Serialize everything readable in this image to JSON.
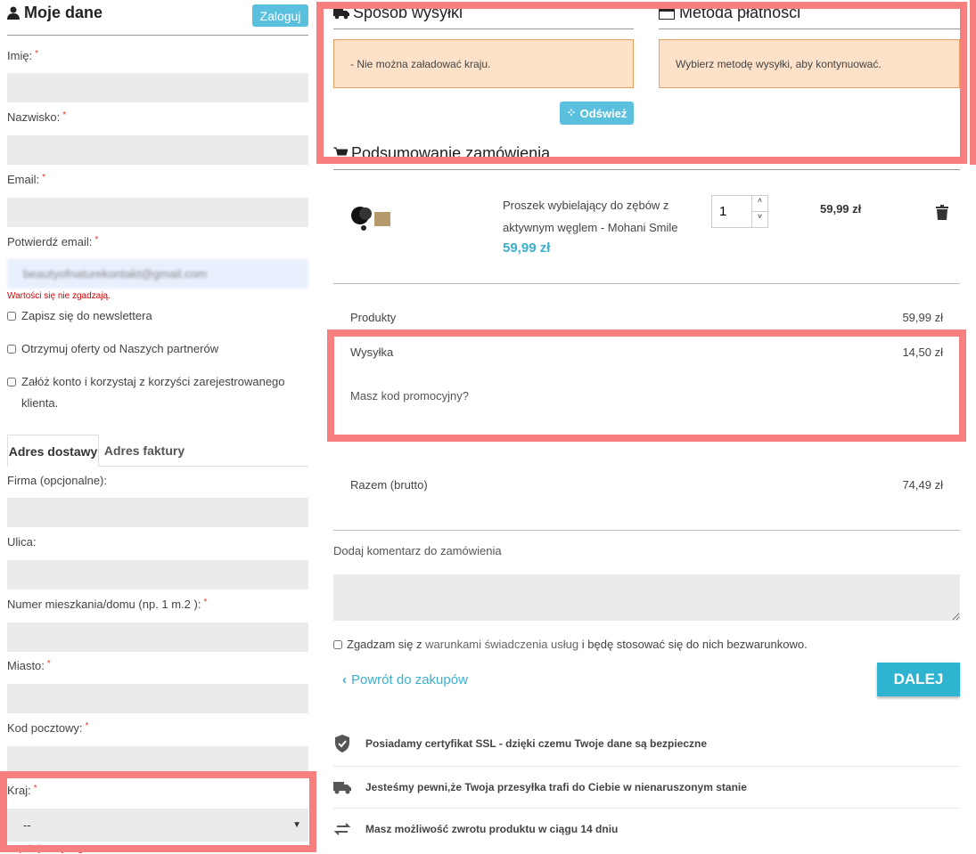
{
  "my_data": {
    "title": "Moje dane",
    "login_button": "Zaloguj",
    "fields": [
      {
        "label": "Imię:",
        "required": "*"
      },
      {
        "label": "Nazwisko:",
        "required": "*"
      },
      {
        "label": "Email:",
        "required": "*"
      },
      {
        "label": "Potwierdź email:",
        "required": "*",
        "value": "beautyofnaturekontakt@gmail.com",
        "error": "Wartości się nie zgadzają."
      }
    ],
    "checkboxes": [
      "Zapisz się do newslettera",
      "Otrzymuj oferty od Naszych partnerów",
      "Załóż konto i korzystaj z korzyści zarejestrowanego klienta."
    ]
  },
  "address": {
    "tabs": [
      "Adres dostawy",
      "Adres faktury"
    ],
    "fields": [
      {
        "label": "Firma (opcjonalne):",
        "required": ""
      },
      {
        "label": "Ulica:",
        "required": ""
      },
      {
        "label": "Numer mieszkania/domu (np. 1 m.2 ):",
        "required": "*"
      },
      {
        "label": "Miasto:",
        "required": "*"
      },
      {
        "label": "Kod pocztowy:",
        "required": "*"
      }
    ],
    "country": {
      "label": "Kraj:",
      "required": "*",
      "value": "--",
      "error": "To pole jest wymagane."
    }
  },
  "shipping": {
    "title": "Sposób wysyłki",
    "alert": "- Nie można załadować kraju.",
    "refresh": "Odśwież"
  },
  "payment": {
    "title": "Metoda płatności",
    "alert": "Wybierz metodę wysyłki, aby kontynuować."
  },
  "summary": {
    "title": "Podsumowanie zamówienia",
    "item": {
      "name": "Proszek wybielający do zębów z aktywnym węglem - Mohani Smile",
      "price": "59,99 zł",
      "qty": "1",
      "total": "59,99 zł"
    },
    "products_label": "Produkty",
    "products_value": "59,99 zł",
    "shipping_label": "Wysyłka",
    "shipping_value": "14,50 zł",
    "promo": "Masz kod promocyjny?",
    "total_label": "Razem (brutto)",
    "total_value": "74,49 zł"
  },
  "comment_label": "Dodaj komentarz do zamówienia",
  "terms": {
    "prefix": "Zgadzam się z ",
    "link": "warunkami świadczenia usług",
    "suffix": " i będę stosować się do nich bezwarunkowo."
  },
  "back_link": "Powrót do zakupów",
  "next_button": "DALEJ",
  "features": [
    "Posiadamy certyfikat SSL - dzięki czemu Twoje dane są bezpieczne",
    "Jesteśmy pewni,że Twoja przesyłka trafi do Ciebie w nienaruszonym stanie",
    "Masz możliwość zwrotu produktu w ciągu 14 dniu"
  ],
  "colors": {
    "accent": "#5bc0de",
    "highlight": "#f77f80",
    "alert_bg": "#fde2c9"
  }
}
